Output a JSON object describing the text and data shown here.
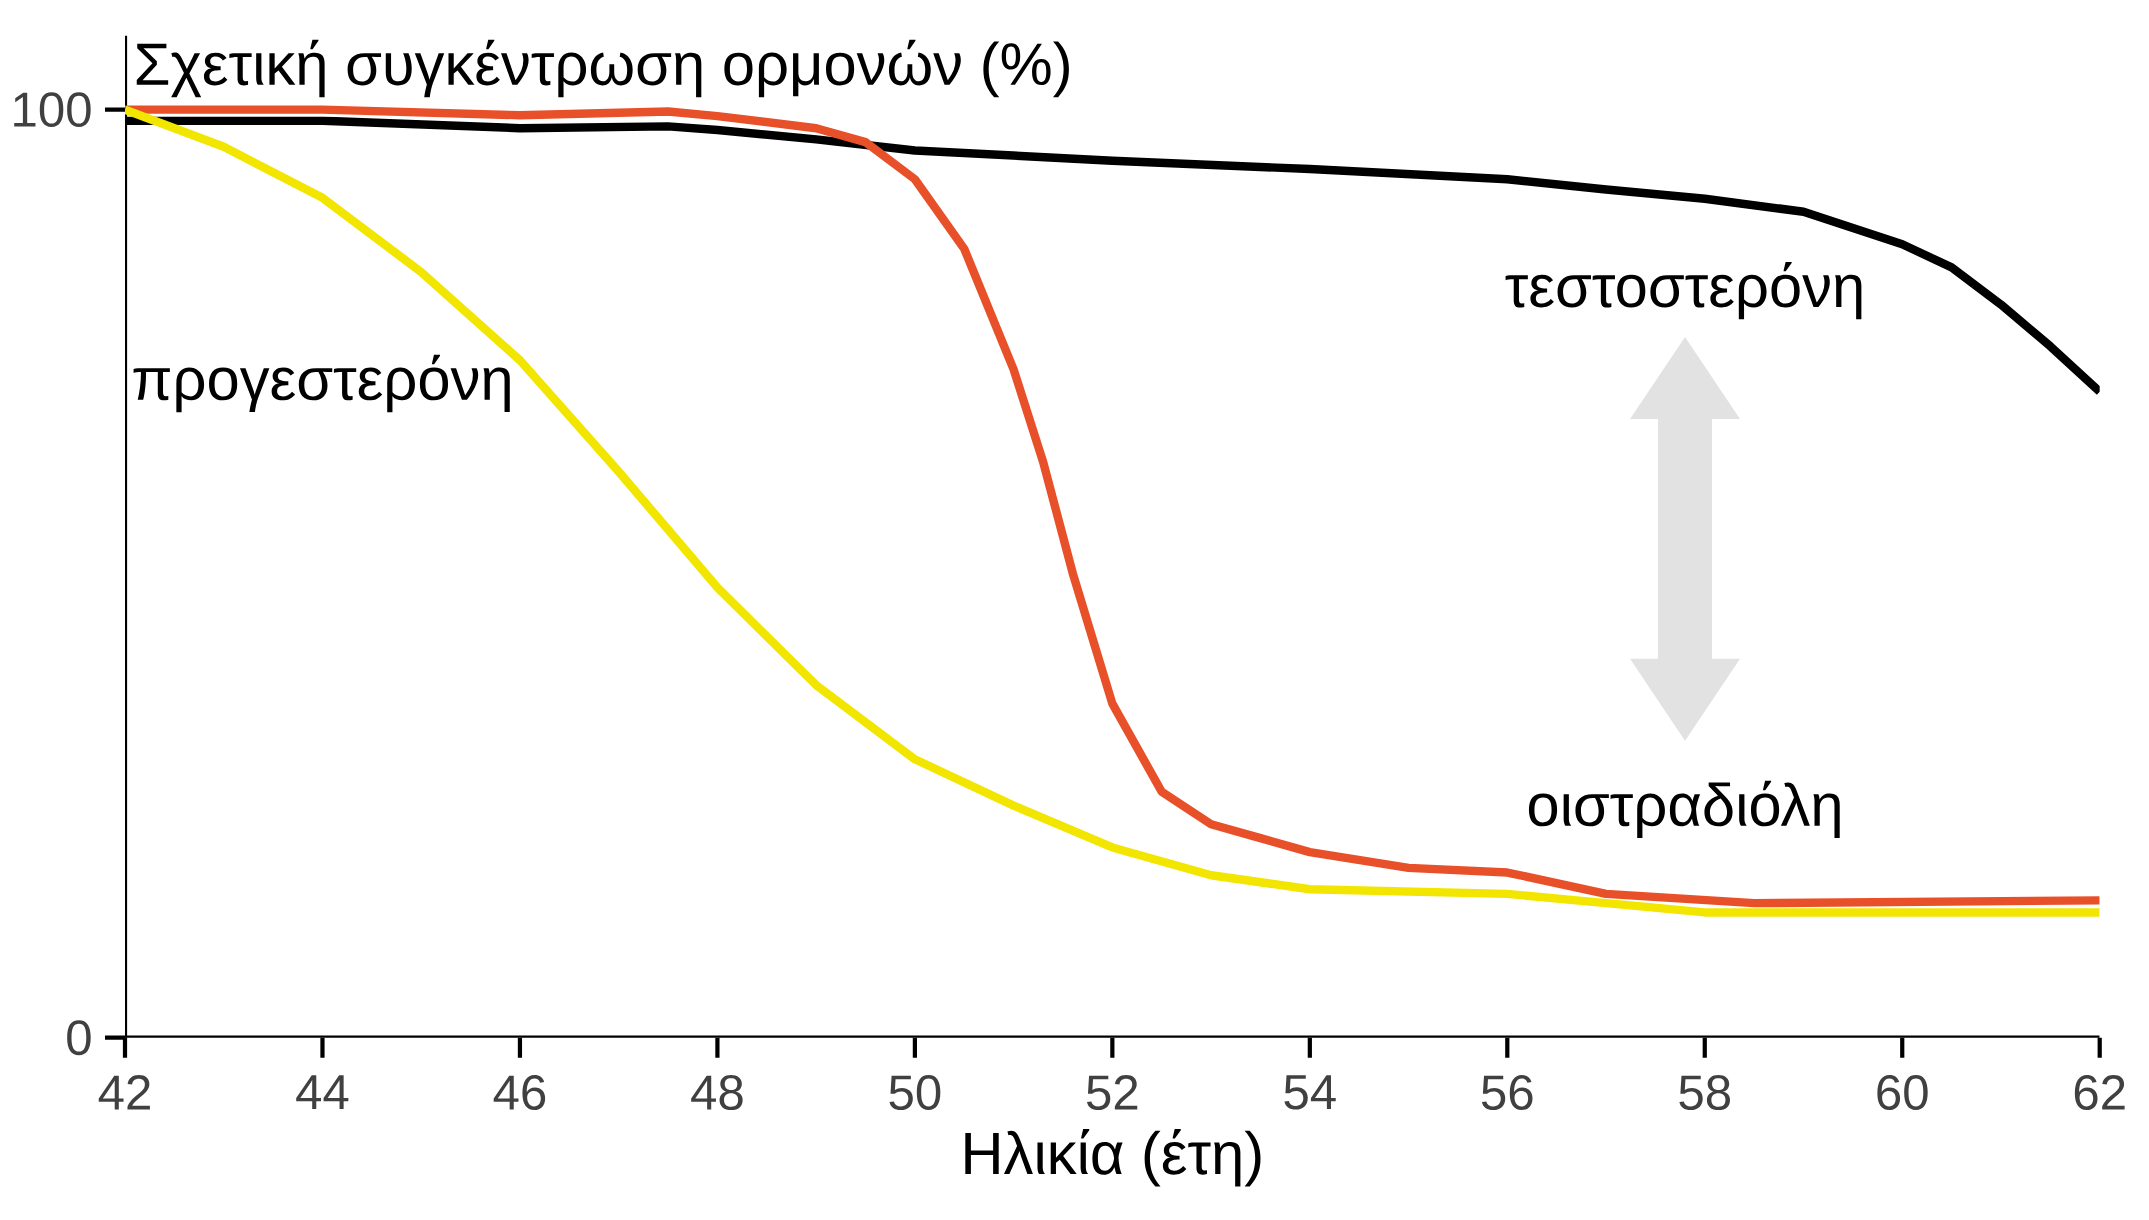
{
  "chart_data": {
    "type": "line",
    "xlabel": "Ηλικία (έτη)",
    "ylabel": "Σχετική συγκέντρωση ορμονών (%)",
    "xlim": [
      42,
      62
    ],
    "ylim": [
      0,
      108
    ],
    "xticks": [
      42,
      44,
      46,
      48,
      50,
      52,
      54,
      56,
      58,
      60,
      62
    ],
    "yticks": [
      0,
      100
    ],
    "marker": "none",
    "line_style": "solid",
    "series": [
      {
        "name": "τεστοστερόνη",
        "color": "#000000",
        "x": [
          42,
          44,
          46,
          47.5,
          48,
          49,
          50,
          52,
          54,
          56,
          57,
          58,
          59,
          60,
          60.5,
          61,
          61.5,
          62
        ],
        "values": [
          98.8,
          98.8,
          98,
          98.2,
          97.8,
          96.8,
          95.6,
          94.5,
          93.6,
          92.5,
          91.4,
          90.4,
          89,
          85.5,
          83,
          79,
          74.5,
          69.6
        ]
      },
      {
        "name": "οιστραδιόλη",
        "color": "#e8502a",
        "x": [
          42,
          44,
          46,
          47.5,
          48,
          49,
          49.5,
          50,
          50.5,
          51,
          51.3,
          51.6,
          52,
          52.5,
          53,
          53.5,
          54,
          55,
          56,
          57,
          58.5,
          62
        ],
        "values": [
          100,
          100,
          99.4,
          99.8,
          99.3,
          98,
          96.5,
          92.5,
          85,
          72,
          62,
          50,
          36,
          26.5,
          23,
          21.5,
          20,
          18.3,
          17.8,
          15.5,
          14.5,
          14.8
        ]
      },
      {
        "name": "προγεστερόνη",
        "color": "#f2e600",
        "x": [
          42,
          43,
          44,
          45,
          46,
          47,
          48,
          49,
          50,
          51,
          52,
          53,
          54,
          56,
          57,
          58,
          62
        ],
        "values": [
          100,
          96,
          90.5,
          82.5,
          73,
          61,
          48.5,
          38,
          30,
          25,
          20.5,
          17.5,
          16,
          15.5,
          14.5,
          13.5,
          13.5
        ]
      }
    ]
  }
}
